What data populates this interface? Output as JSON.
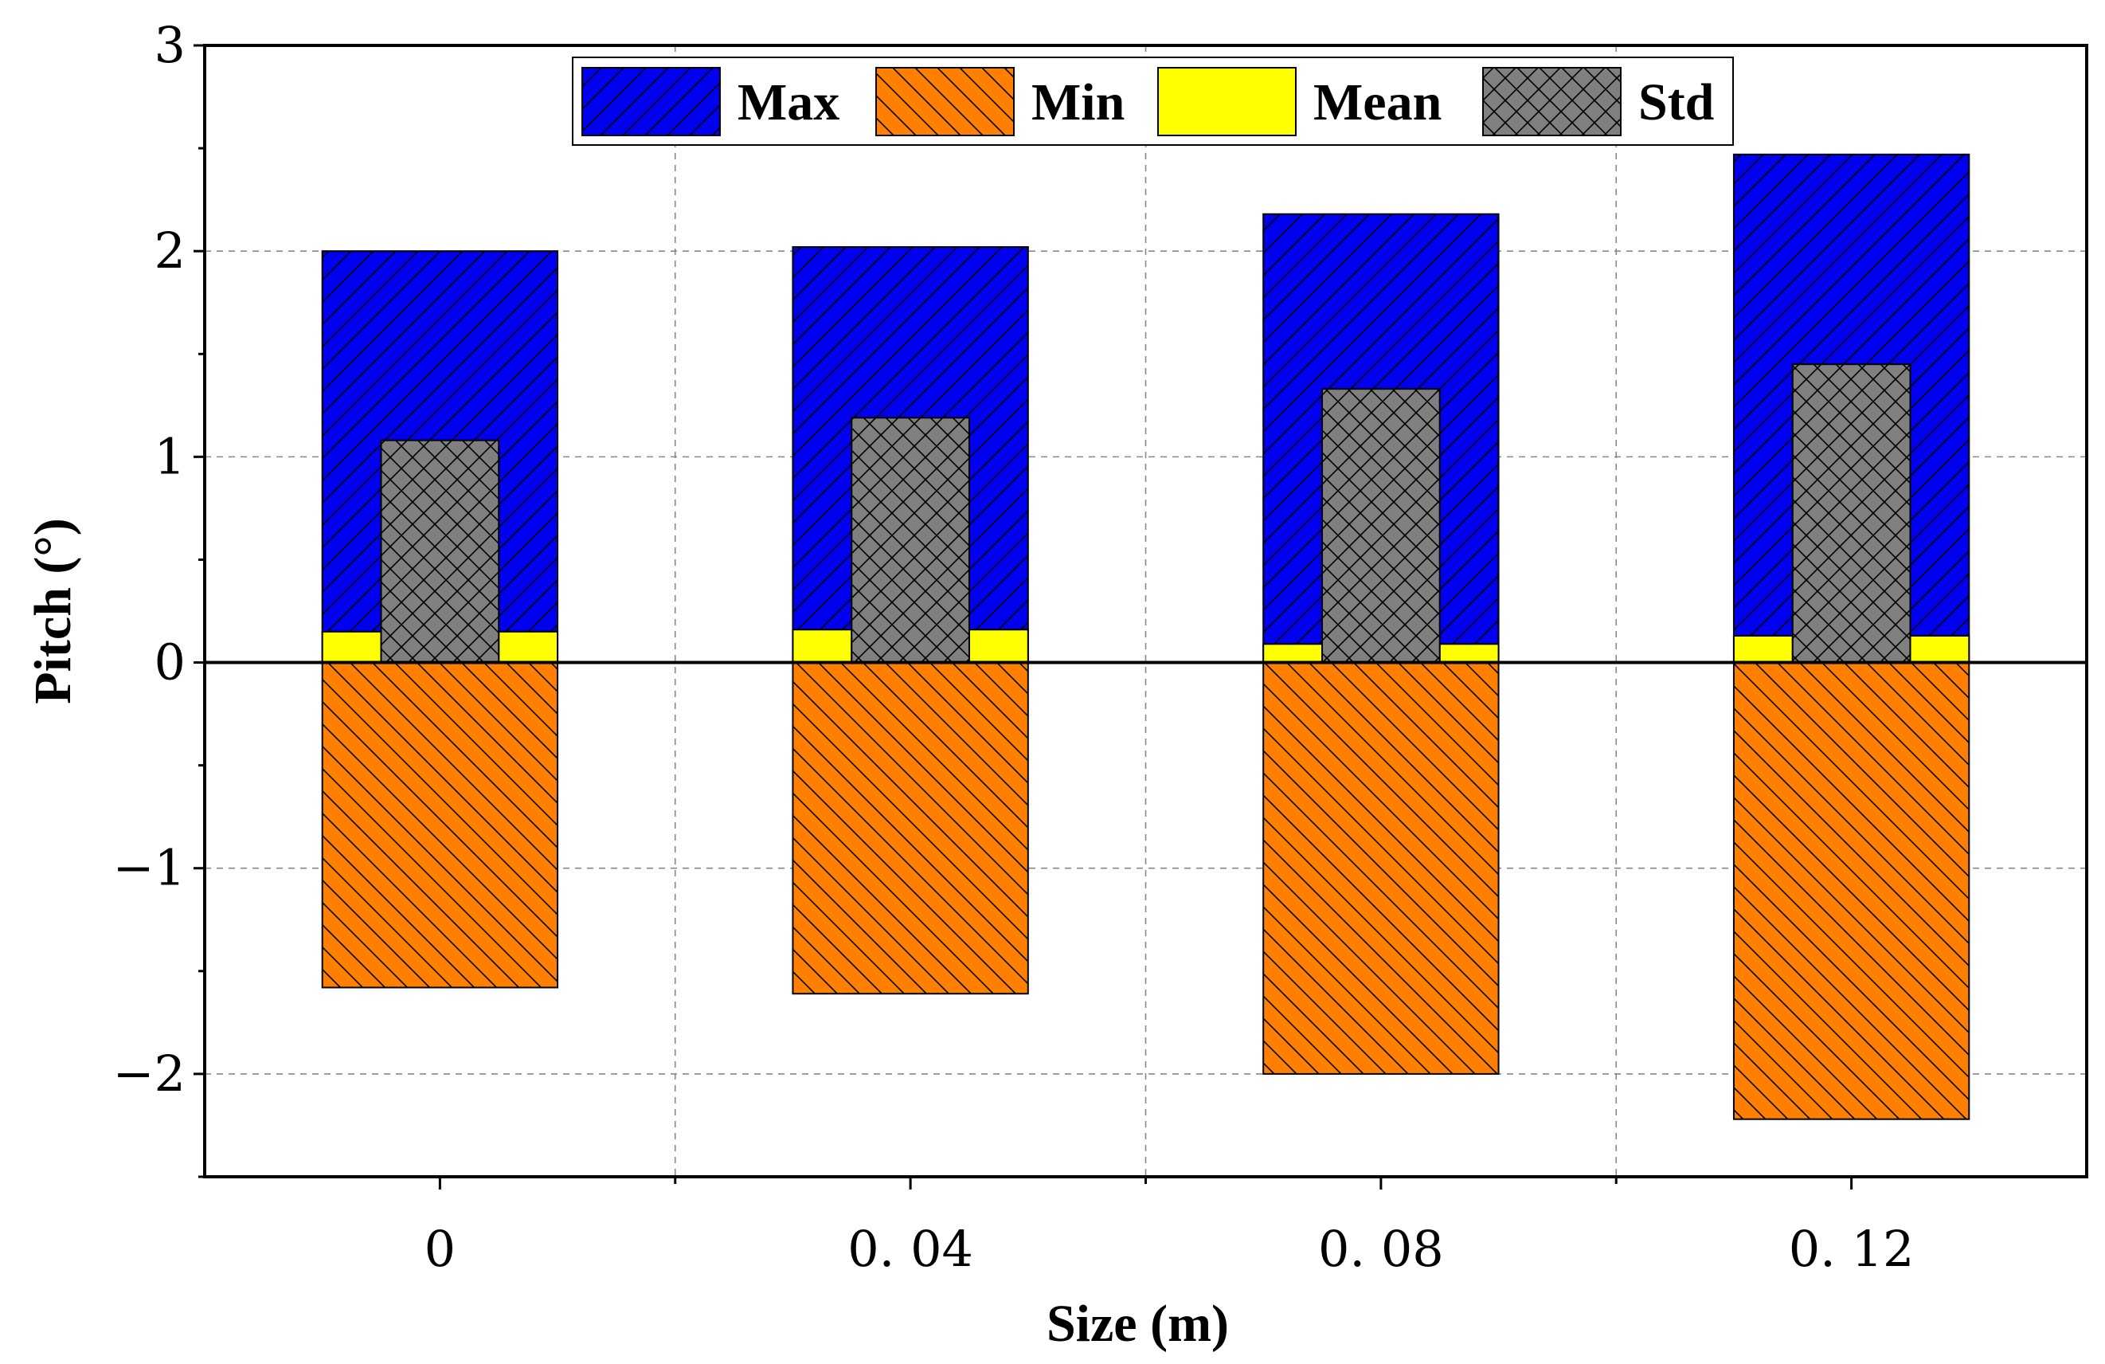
{
  "chart_data": {
    "type": "bar",
    "title": "",
    "xlabel": "Size (m)",
    "ylabel": "Pitch (°)",
    "categories": [
      "0",
      "0.04",
      "0.08",
      "0.12"
    ],
    "category_tick_labels": [
      "0",
      "0. 04",
      "0. 08",
      "0. 12"
    ],
    "x_values": [
      0,
      0.04,
      0.08,
      0.12
    ],
    "xlim": [
      -0.02,
      0.14
    ],
    "ylim": [
      -2.5,
      3
    ],
    "y_ticks": [
      -2,
      -1,
      0,
      1,
      2,
      3
    ],
    "y_tick_labels": [
      "−2",
      "−1",
      "0",
      "1",
      "2",
      "3"
    ],
    "grid": true,
    "legend_position": "top-center",
    "series": [
      {
        "name": "Max",
        "values": [
          2.0,
          2.02,
          2.18,
          2.47
        ],
        "color": "#0000ee",
        "hatch": "forward-diagonal"
      },
      {
        "name": "Min",
        "values": [
          -1.58,
          -1.61,
          -2.0,
          -2.22
        ],
        "color": "#ff8000",
        "hatch": "back-diagonal"
      },
      {
        "name": "Mean",
        "values": [
          0.15,
          0.16,
          0.09,
          0.13
        ],
        "color": "#ffff00",
        "hatch": "none"
      },
      {
        "name": "Std",
        "values": [
          1.08,
          1.19,
          1.33,
          1.45
        ],
        "color": "#808080",
        "hatch": "cross"
      }
    ]
  }
}
